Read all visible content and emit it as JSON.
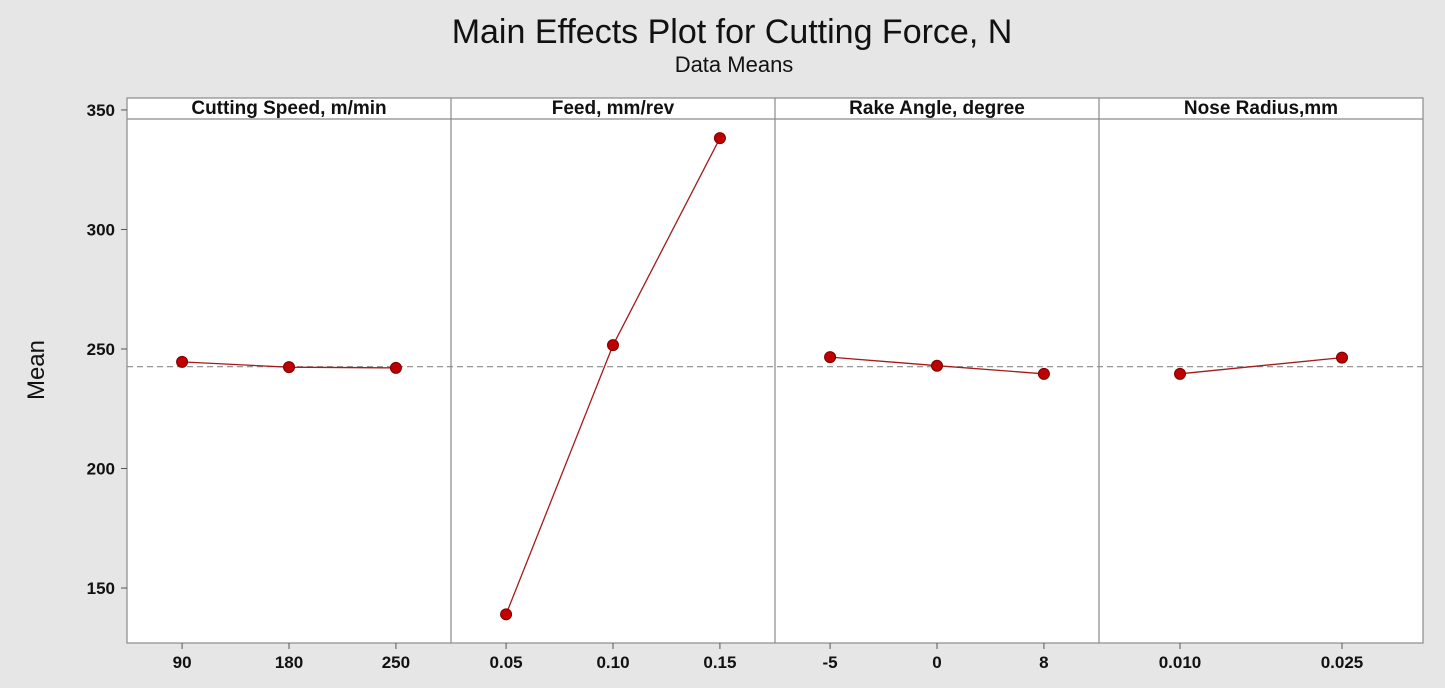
{
  "chart_data": {
    "type": "line",
    "title": "Main Effects Plot for Cutting Force, N",
    "subtitle": "Data Means",
    "ylabel": "Mean",
    "ylim": [
      127,
      355
    ],
    "yticks": [
      150,
      200,
      250,
      300,
      350
    ],
    "reference_mean": 242.6,
    "colors": {
      "line": "#a31b1b",
      "marker": "#c00000",
      "background": "#e6e6e6",
      "panel": "#ffffff"
    },
    "panels": [
      {
        "label": "Cutting Speed, m/min",
        "categories": [
          "90",
          "180",
          "250"
        ],
        "values": [
          244.6,
          242.4,
          242.1
        ]
      },
      {
        "label": "Feed, mm/rev",
        "categories": [
          "0.05",
          "0.10",
          "0.15"
        ],
        "values": [
          139,
          251.6,
          338.2
        ]
      },
      {
        "label": "Rake Angle, degree",
        "categories": [
          "-5",
          "0",
          "8"
        ],
        "values": [
          246.6,
          243.0,
          239.6
        ]
      },
      {
        "label": "Nose Radius,mm",
        "categories": [
          "0.010",
          "0.025"
        ],
        "values": [
          239.6,
          246.4
        ]
      }
    ]
  }
}
